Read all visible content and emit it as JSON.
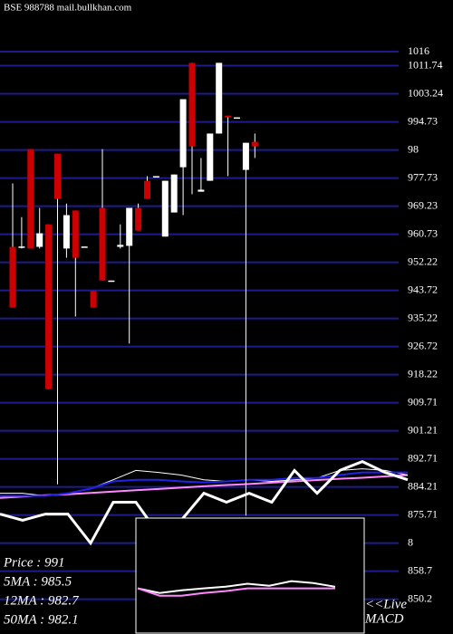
{
  "chart_data": {
    "type": "candlestick",
    "title": "BSE 988788 mail.bullkhan.com",
    "ylim": [
      848.2,
      1018
    ],
    "yticks": [
      1016,
      1011.74,
      1003.24,
      994.73,
      {
        "value": 986.23,
        "label": "98"
      },
      977.73,
      969.23,
      960.73,
      952.22,
      943.72,
      935.22,
      926.72,
      918.22,
      909.71,
      901.21,
      892.71,
      884.21,
      875.71,
      {
        "value": 867.2,
        "label": "8"
      },
      858.7,
      850.2
    ],
    "grid": true,
    "grid_color": "#1c1c8c",
    "up_color": "#ffffff",
    "down_color": "#cc0000",
    "candles": [
      {
        "open": 956.9,
        "high": 976.1,
        "low": 938.5,
        "close": 938.5
      },
      {
        "open": 957,
        "high": 965.9,
        "low": 956.4,
        "close": 957
      },
      {
        "open": 986.5,
        "high": 986.5,
        "low": 956.4,
        "close": 956.4
      },
      {
        "open": 956.9,
        "high": 968.7,
        "low": 956.4,
        "close": 961
      },
      {
        "open": 963.7,
        "high": 963.7,
        "low": 913.8,
        "close": 913.8
      },
      {
        "open": 985.1,
        "high": 985.1,
        "low": 885,
        "close": 971.4
      },
      {
        "open": 956.4,
        "high": 970,
        "low": 953.6,
        "close": 966.5
      },
      {
        "open": 967.9,
        "high": 967.9,
        "low": 935.8,
        "close": 953.6
      },
      {
        "open": 957,
        "high": 957,
        "low": 957,
        "close": 957
      },
      {
        "open": 943.5,
        "high": 943.5,
        "low": 938.5,
        "close": 938.5
      },
      {
        "open": 968.7,
        "high": 986.5,
        "low": 946.7,
        "close": 946.7
      },
      {
        "open": 946.7,
        "high": 946.7,
        "low": 946.7,
        "close": 946.7
      },
      {
        "open": 956.9,
        "high": 963.7,
        "low": 956.4,
        "close": 957.5
      },
      {
        "open": 957.2,
        "high": 968.7,
        "low": 927.6,
        "close": 968.7
      },
      {
        "open": 968.7,
        "high": 970,
        "low": 961.8,
        "close": 961.8
      },
      {
        "open": 976.9,
        "high": 978.3,
        "low": 971.4,
        "close": 971.4
      },
      {
        "open": 978.3,
        "high": 978.3,
        "low": 978.3,
        "close": 978.3
      },
      {
        "open": 960,
        "high": 976.9,
        "low": 960,
        "close": 976.9
      },
      {
        "open": 967.3,
        "high": 978.8,
        "low": 967.3,
        "close": 978.8
      },
      {
        "open": 981,
        "high": 1001.6,
        "low": 966.5,
        "close": 1001.6
      },
      {
        "open": 1012.6,
        "high": 1012.6,
        "low": 972.8,
        "close": 987.3
      },
      {
        "open": 973.6,
        "high": 983.8,
        "low": 973.6,
        "close": 974.2
      },
      {
        "open": 976.9,
        "high": 991.2,
        "low": 976.9,
        "close": 991.2
      },
      {
        "open": 991.2,
        "high": 1012.6,
        "low": 991.2,
        "close": 1012.6
      },
      {
        "open": 996.6,
        "high": 996.6,
        "low": 978.3,
        "close": 996.1
      },
      {
        "open": 996.1,
        "high": 996.1,
        "low": 996.1,
        "close": 996.1
      },
      {
        "open": 980.2,
        "high": 988.4,
        "low": 875.5,
        "close": 988.4
      },
      {
        "open": 988.7,
        "high": 991.2,
        "low": 983.8,
        "close": 987.3
      }
    ],
    "overlay_lines": [
      {
        "color": "#ff88ff",
        "width": 2,
        "values": [
          880.9,
          881.3,
          881.7,
          882.0,
          882.4,
          882.8,
          883.2,
          883.6,
          884.0,
          884.4,
          884.8,
          885.1,
          885.5,
          885.9,
          886.3,
          886.7,
          887.0,
          887.4,
          887.8
        ]
      },
      {
        "color": "#ffffff",
        "width": 1,
        "values": [
          882.3,
          882.3,
          881.5,
          882.3,
          883.7,
          886.4,
          889.2,
          888.6,
          887.8,
          886.4,
          885.9,
          886.4,
          885.9,
          886.4,
          886.9,
          889.2,
          889.7,
          889.2,
          887.8
        ]
      },
      {
        "color": "#2222ee",
        "width": 2,
        "values": [
          881.5,
          881.5,
          881.5,
          882.3,
          883.7,
          885.9,
          886.4,
          886.4,
          885.9,
          885.6,
          885.9,
          886.4,
          886.4,
          886.9,
          886.9,
          887.8,
          888.6,
          888.6,
          888.6
        ]
      },
      {
        "color": "#ffffff",
        "width": 3,
        "values": [
          876.0,
          874.1,
          876.0,
          876.0,
          867.2,
          879.6,
          879.6,
          870.0,
          874.1,
          882.3,
          879.6,
          882.3,
          879.6,
          889.2,
          882.3,
          889.2,
          891.9,
          888.6,
          886.4
        ]
      }
    ],
    "inset_lines": [
      {
        "color": "#ffffff",
        "width": 2,
        "values": [
          853.5,
          852.1,
          852.9,
          853.5,
          854.0,
          854.9,
          854.3,
          855.7,
          855.1,
          854.0
        ]
      },
      {
        "color": "#ff88ff",
        "width": 2,
        "values": [
          853.5,
          851.3,
          851.3,
          852.1,
          852.7,
          853.5,
          853.5,
          853.5,
          853.5,
          853.5
        ]
      }
    ],
    "info": [
      "Price : 991",
      "5MA : 985.5",
      "12MA : 982.7",
      "50MA : 982.1"
    ],
    "inset_label": [
      "<<Live",
      "MACD"
    ]
  }
}
